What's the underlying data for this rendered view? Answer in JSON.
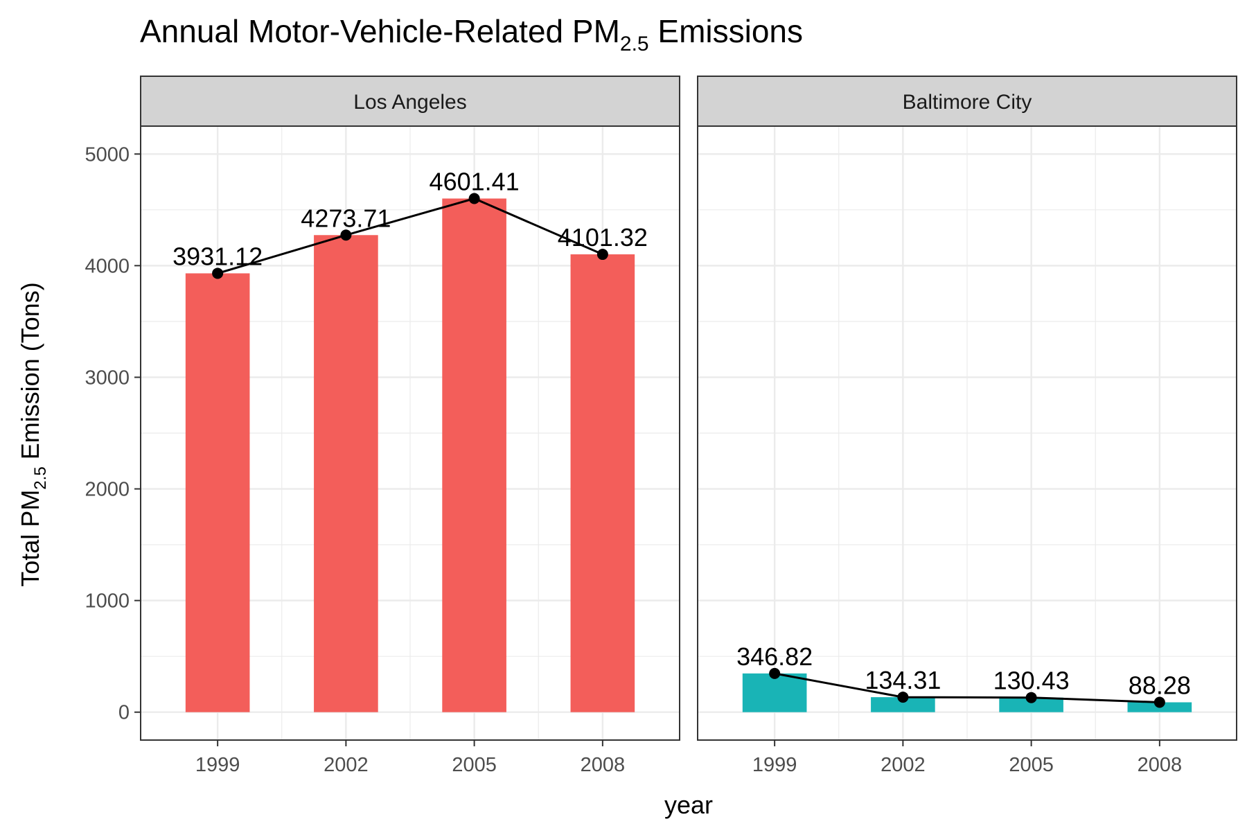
{
  "chart_data": {
    "type": "bar",
    "title": "Annual Motor-Vehicle-Related PM",
    "title_subscript": "2.5",
    "title_suffix": " Emissions",
    "xlabel": "year",
    "ylabel": "Total PM",
    "ylabel_subscript": "2.5",
    "ylabel_suffix": " Emission (Tons)",
    "ylim": [
      -250,
      5250
    ],
    "yticks": [
      0,
      1000,
      2000,
      3000,
      4000,
      5000
    ],
    "grid": true,
    "legend": "none",
    "overlay": "line with points and value labels",
    "categories": [
      "1999",
      "2002",
      "2005",
      "2008"
    ],
    "panels": [
      {
        "name": "Los Angeles",
        "color": "#f35e5a",
        "values": [
          3931.12,
          4273.71,
          4601.41,
          4101.32
        ],
        "labels": [
          "3931.12",
          "4273.71",
          "4601.41",
          "4101.32"
        ]
      },
      {
        "name": "Baltimore City",
        "color": "#19b4b6",
        "values": [
          346.82,
          134.31,
          130.43,
          88.28
        ],
        "labels": [
          "346.82",
          "134.31",
          "130.43",
          "88.28"
        ]
      }
    ]
  }
}
